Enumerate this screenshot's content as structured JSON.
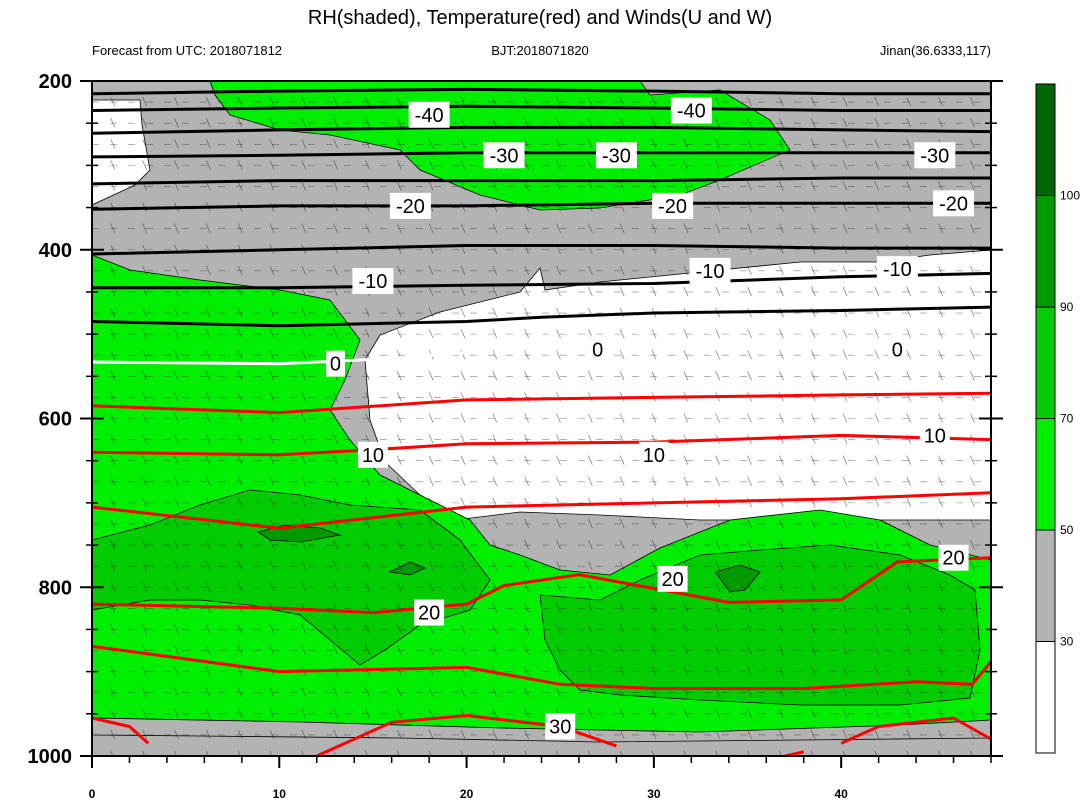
{
  "chart_data": {
    "type": "contour-crosssection",
    "title": "RH(shaded), Temperature(red) and Winds(U and W)",
    "subtitle_left": "Forecast from UTC: 2018071812",
    "subtitle_center": "BJT:2018071820",
    "subtitle_right": "Jinan(36.6333,117)",
    "xlim": [
      0,
      48
    ],
    "ylim": [
      200,
      1000
    ],
    "x_ticks": [
      0,
      10,
      20,
      30,
      40
    ],
    "y_ticks": [
      200,
      400,
      600,
      800,
      1000
    ],
    "y_minor": [
      250,
      300,
      350,
      450,
      500,
      550,
      650,
      700,
      750,
      850,
      900,
      950
    ],
    "colorbar": {
      "ticks": [
        30,
        50,
        70,
        90,
        100
      ],
      "colors": [
        "#ffffff",
        "#b3b3b3",
        "#00ee00",
        "#00cc00",
        "#009900",
        "#006600"
      ]
    },
    "temperature_contours": [
      {
        "value": -40,
        "color": "#000000",
        "points": [
          [
            0,
            215
          ],
          [
            10,
            212
          ],
          [
            20,
            210
          ],
          [
            30,
            212
          ],
          [
            40,
            215
          ],
          [
            48,
            215
          ]
        ]
      },
      {
        "value": -40,
        "color": "#000000",
        "points": [
          [
            0,
            235
          ],
          [
            10,
            232
          ],
          [
            20,
            230
          ],
          [
            30,
            232
          ],
          [
            40,
            235
          ],
          [
            48,
            235
          ]
        ]
      },
      {
        "value": -30,
        "color": "#000000",
        "points": [
          [
            0,
            262
          ],
          [
            10,
            258
          ],
          [
            20,
            255
          ],
          [
            30,
            255
          ],
          [
            40,
            258
          ],
          [
            48,
            260
          ]
        ]
      },
      {
        "value": -30,
        "color": "#000000",
        "points": [
          [
            0,
            290
          ],
          [
            10,
            288
          ],
          [
            20,
            285
          ],
          [
            30,
            285
          ],
          [
            40,
            285
          ],
          [
            48,
            285
          ]
        ]
      },
      {
        "value": -20,
        "color": "#000000",
        "points": [
          [
            0,
            322
          ],
          [
            10,
            318
          ],
          [
            20,
            318
          ],
          [
            30,
            318
          ],
          [
            40,
            315
          ],
          [
            48,
            315
          ]
        ]
      },
      {
        "value": -20,
        "color": "#000000",
        "points": [
          [
            0,
            352
          ],
          [
            10,
            348
          ],
          [
            20,
            348
          ],
          [
            30,
            345
          ],
          [
            40,
            345
          ],
          [
            48,
            345
          ]
        ]
      },
      {
        "value": -10,
        "color": "#000000",
        "points": [
          [
            0,
            405
          ],
          [
            10,
            400
          ],
          [
            20,
            395
          ],
          [
            30,
            395
          ],
          [
            40,
            398
          ],
          [
            48,
            398
          ]
        ]
      },
      {
        "value": -10,
        "color": "#000000",
        "points": [
          [
            0,
            445
          ],
          [
            10,
            445
          ],
          [
            20,
            442
          ],
          [
            30,
            440
          ],
          [
            40,
            432
          ],
          [
            48,
            428
          ]
        ]
      },
      {
        "value": -10,
        "color": "#000000",
        "points": [
          [
            0,
            485
          ],
          [
            10,
            490
          ],
          [
            20,
            485
          ],
          [
            24,
            480
          ],
          [
            30,
            475
          ],
          [
            40,
            472
          ],
          [
            48,
            468
          ]
        ]
      },
      {
        "value": 0,
        "color": "#ffffff",
        "points": [
          [
            0,
            533
          ],
          [
            10,
            535
          ],
          [
            15,
            530
          ],
          [
            20,
            522
          ]
        ]
      },
      {
        "value": 10,
        "color": "#ff0000",
        "points": [
          [
            0,
            585
          ],
          [
            10,
            593
          ],
          [
            20,
            578
          ],
          [
            30,
            575
          ],
          [
            40,
            572
          ],
          [
            48,
            570
          ]
        ]
      },
      {
        "value": 10,
        "color": "#ff0000",
        "points": [
          [
            0,
            640
          ],
          [
            10,
            643
          ],
          [
            15,
            637
          ],
          [
            20,
            630
          ],
          [
            30,
            628
          ],
          [
            40,
            620
          ],
          [
            48,
            625
          ]
        ]
      },
      {
        "value": 10,
        "color": "#ff0000",
        "points": [
          [
            0,
            705
          ],
          [
            10,
            730
          ],
          [
            20,
            705
          ],
          [
            30,
            700
          ],
          [
            40,
            695
          ],
          [
            48,
            688
          ]
        ]
      },
      {
        "value": 20,
        "color": "#ff0000",
        "points": [
          [
            0,
            820
          ],
          [
            10,
            825
          ],
          [
            15,
            830
          ],
          [
            20,
            820
          ],
          [
            22,
            798
          ],
          [
            26,
            785
          ],
          [
            34,
            818
          ],
          [
            40,
            815
          ],
          [
            43,
            770
          ],
          [
            48,
            765
          ]
        ]
      },
      {
        "value": 20,
        "color": "#ff0000",
        "points": [
          [
            0,
            870
          ],
          [
            10,
            900
          ],
          [
            20,
            895
          ],
          [
            25,
            915
          ],
          [
            30,
            920
          ],
          [
            38,
            920
          ],
          [
            44,
            912
          ],
          [
            47,
            915
          ],
          [
            48,
            888
          ]
        ]
      },
      {
        "value": 30,
        "color": "#ff0000",
        "points": [
          [
            0,
            955
          ],
          [
            2,
            965
          ],
          [
            3,
            985
          ]
        ]
      },
      {
        "value": 30,
        "color": "#ff0000",
        "points": [
          [
            12,
            1000
          ],
          [
            16,
            960
          ],
          [
            20,
            952
          ],
          [
            25,
            965
          ],
          [
            28,
            988
          ]
        ]
      },
      {
        "value": 30,
        "color": "#ff0000",
        "points": [
          [
            37,
            1000
          ],
          [
            38,
            995
          ]
        ]
      },
      {
        "value": 30,
        "color": "#ff0000",
        "points": [
          [
            40,
            985
          ],
          [
            42,
            965
          ],
          [
            46,
            955
          ],
          [
            48,
            980
          ]
        ]
      }
    ],
    "contour_labels": [
      {
        "text": "-40",
        "x": 18,
        "y": 240
      },
      {
        "text": "-40",
        "x": 32,
        "y": 235
      },
      {
        "text": "-30",
        "x": 22,
        "y": 288
      },
      {
        "text": "-30",
        "x": 28,
        "y": 288
      },
      {
        "text": "-30",
        "x": 45,
        "y": 288
      },
      {
        "text": "-20",
        "x": 17,
        "y": 348
      },
      {
        "text": "-20",
        "x": 31,
        "y": 348
      },
      {
        "text": "-20",
        "x": 46,
        "y": 345
      },
      {
        "text": "-10",
        "x": 15,
        "y": 437
      },
      {
        "text": "-10",
        "x": 33,
        "y": 425
      },
      {
        "text": "-10",
        "x": 43,
        "y": 423
      },
      {
        "text": "0",
        "x": 13,
        "y": 535
      },
      {
        "text": "0",
        "x": 27,
        "y": 518
      },
      {
        "text": "0",
        "x": 43,
        "y": 518
      },
      {
        "text": "10",
        "x": 15,
        "y": 643
      },
      {
        "text": "10",
        "x": 30,
        "y": 643
      },
      {
        "text": "10",
        "x": 45,
        "y": 620
      },
      {
        "text": "20",
        "x": 18,
        "y": 830
      },
      {
        "text": "20",
        "x": 31,
        "y": 790
      },
      {
        "text": "20",
        "x": 46,
        "y": 765
      },
      {
        "text": "30",
        "x": 25,
        "y": 965
      }
    ]
  }
}
